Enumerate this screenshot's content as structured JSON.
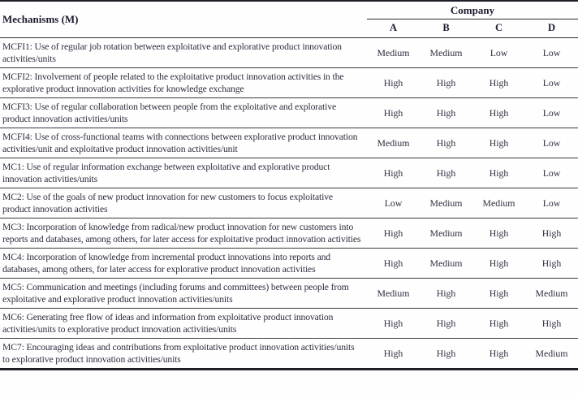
{
  "table": {
    "col1_header": "Mechanisms (M)",
    "group_header": "Company",
    "companies": [
      "A",
      "B",
      "C",
      "D"
    ],
    "rows": [
      {
        "mechanism": "MCFI1: Use of regular job rotation between exploitative and explorative product innovation activities/units",
        "values": [
          "Medium",
          "Medium",
          "Low",
          "Low"
        ]
      },
      {
        "mechanism": "MCFI2: Involvement of people related to the exploitative product innovation activities in the explorative product innovation activities for knowledge exchange",
        "values": [
          "High",
          "High",
          "High",
          "Low"
        ]
      },
      {
        "mechanism": "MCFI3: Use of regular collaboration between people from the exploitative and explorative product innovation activities/units",
        "values": [
          "High",
          "High",
          "High",
          "Low"
        ]
      },
      {
        "mechanism": "MCFI4: Use of cross-functional teams with connections between explorative product innovation activities/unit and exploitative product innovation activities/unit",
        "values": [
          "Medium",
          "High",
          "High",
          "Low"
        ]
      },
      {
        "mechanism": "MC1: Use of regular information exchange between exploitative and explorative product innovation activities/units",
        "values": [
          "High",
          "High",
          "High",
          "Low"
        ]
      },
      {
        "mechanism": "MC2: Use of the goals of new product innovation for new customers to focus exploitative product innovation activities",
        "values": [
          "Low",
          "Medium",
          "Medium",
          "Low"
        ]
      },
      {
        "mechanism": "MC3: Incorporation of knowledge from radical/new product innovation for new customers into reports and databases, among others, for later access for exploitative product innovation activities",
        "values": [
          "High",
          "Medium",
          "High",
          "High"
        ]
      },
      {
        "mechanism": "MC4: Incorporation of knowledge from incremental product innovations into reports and databases, among others, for later access for explorative product innovation activities",
        "values": [
          "High",
          "Medium",
          "High",
          "High"
        ]
      },
      {
        "mechanism": "MC5: Communication and meetings (including forums and committees) between people from exploitative and explorative product innovation activities/units",
        "values": [
          "Medium",
          "High",
          "High",
          "Medium"
        ]
      },
      {
        "mechanism": "MC6: Generating free flow of ideas and information from exploitative product innovation activities/units to explorative product innovation activities/units",
        "values": [
          "High",
          "High",
          "High",
          "High"
        ]
      },
      {
        "mechanism": "MC7: Encouraging ideas and contributions from exploitative product innovation activities/units to explorative product innovation activities/units",
        "values": [
          "High",
          "High",
          "High",
          "Medium"
        ]
      }
    ]
  }
}
